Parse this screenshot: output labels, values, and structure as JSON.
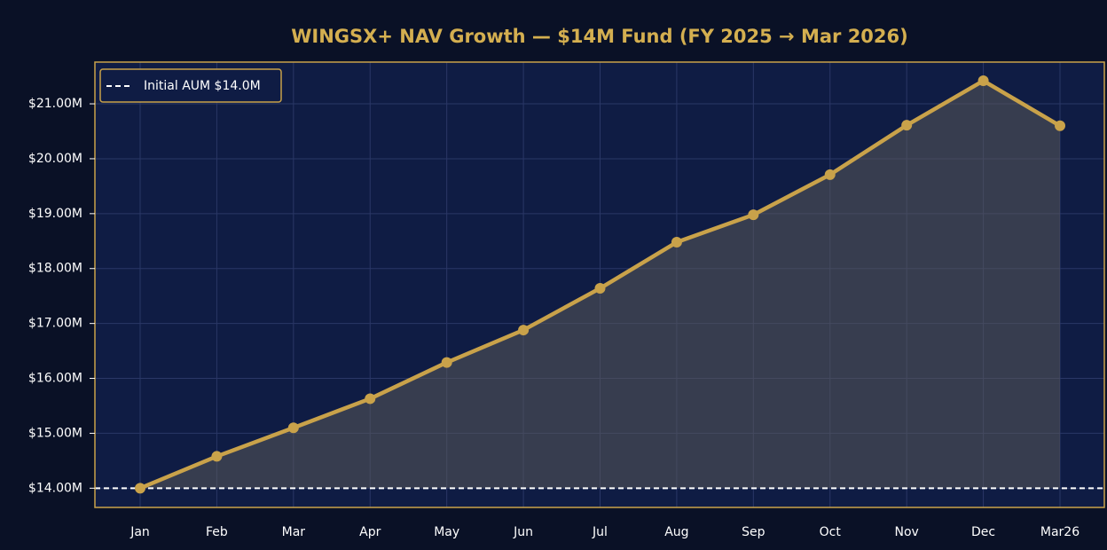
{
  "chart_data": {
    "type": "line",
    "title": "WINGSX+ NAV Growth — $14M Fund (FY 2025 → Mar 2026)",
    "categories": [
      "Jan",
      "Feb",
      "Mar",
      "Apr",
      "May",
      "Jun",
      "Jul",
      "Aug",
      "Sep",
      "Oct",
      "Nov",
      "Dec",
      "Mar26"
    ],
    "series": [
      {
        "color": "#c9a24a",
        "values": [
          14000000,
          14580000,
          15100000,
          15630000,
          16290000,
          16880000,
          17640000,
          18480000,
          18980000,
          19710000,
          20610000,
          21420000,
          20600000
        ]
      }
    ],
    "reference_line": {
      "label": "Initial AUM $14.0M",
      "value": 14000000,
      "color": "#ffffff"
    },
    "ylim": [
      13650000,
      21760000
    ],
    "yticks": [
      {
        "value": 14000000,
        "label": "$14.00M"
      },
      {
        "value": 15000000,
        "label": "$15.00M"
      },
      {
        "value": 16000000,
        "label": "$16.00M"
      },
      {
        "value": 17000000,
        "label": "$17.00M"
      },
      {
        "value": 18000000,
        "label": "$18.00M"
      },
      {
        "value": 19000000,
        "label": "$19.00M"
      },
      {
        "value": 20000000,
        "label": "$20.00M"
      },
      {
        "value": 21000000,
        "label": "$21.00M"
      }
    ],
    "grid": true,
    "legend": "upper left"
  }
}
